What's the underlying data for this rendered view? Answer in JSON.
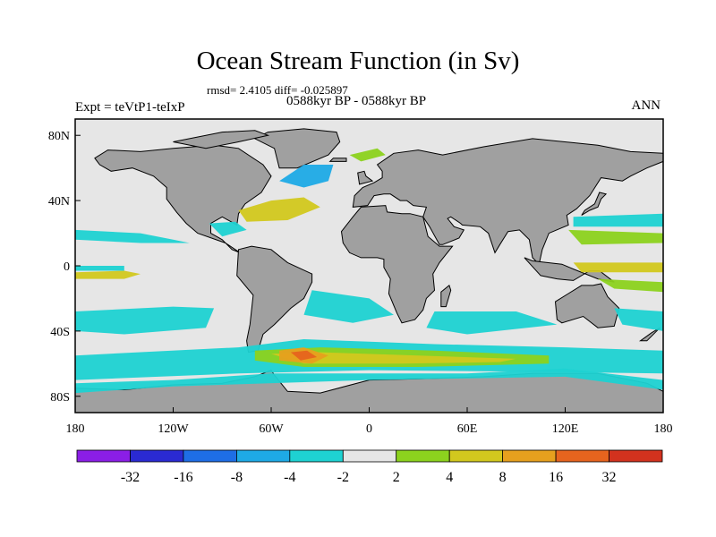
{
  "chart_data": {
    "type": "heatmap",
    "title": "Ocean Stream Function (in Sv)",
    "stats_line": "rmsd= 2.4105 diff= -0.025897",
    "left_label": "Expt = teVtP1-teIxP",
    "center_label": "0588kyr BP - 0588kyr BP",
    "right_label": "ANN",
    "x_ticks": [
      {
        "value": -180,
        "label": "180"
      },
      {
        "value": -120,
        "label": "120W"
      },
      {
        "value": -60,
        "label": "60W"
      },
      {
        "value": 0,
        "label": "0"
      },
      {
        "value": 60,
        "label": "60E"
      },
      {
        "value": 120,
        "label": "120E"
      },
      {
        "value": 180,
        "label": "180"
      }
    ],
    "y_ticks": [
      {
        "value": 80,
        "label": "80N"
      },
      {
        "value": 40,
        "label": "40N"
      },
      {
        "value": 0,
        "label": "0"
      },
      {
        "value": -40,
        "label": "40S"
      },
      {
        "value": -80,
        "label": "80S"
      }
    ],
    "xlim": [
      -180,
      180
    ],
    "ylim": [
      -90,
      90
    ],
    "colorbar": {
      "colors": [
        "#8b1ee6",
        "#2a2ad2",
        "#1e6ee6",
        "#1eaae6",
        "#1ed2d2",
        "#e6e6e6",
        "#8cd21e",
        "#d2c81e",
        "#e6a01e",
        "#e6641e",
        "#d2321e"
      ],
      "labels": [
        "-32",
        "-16",
        "-8",
        "-4",
        "-2",
        "2",
        "4",
        "8",
        "16",
        "32"
      ]
    },
    "land_color": "#a0a0a0",
    "ocean_background": "#e6e6e6"
  }
}
